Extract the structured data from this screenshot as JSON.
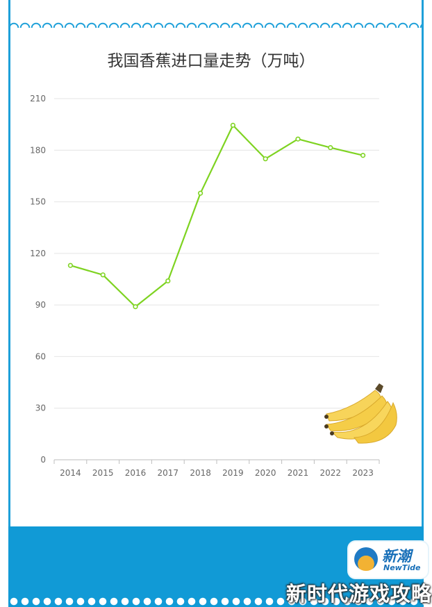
{
  "chart_data": {
    "type": "line",
    "title": "我国香蕉进口量走势（万吨）",
    "x": [
      "2014",
      "2015",
      "2016",
      "2017",
      "2018",
      "2019",
      "2020",
      "2021",
      "2022",
      "2023"
    ],
    "series": [
      {
        "values": [
          113,
          107.5,
          89,
          104,
          155,
          194.5,
          175,
          186.5,
          181.5,
          177
        ]
      }
    ],
    "yticks": [
      0,
      30,
      60,
      90,
      120,
      150,
      180,
      210
    ],
    "ylim": [
      0,
      210
    ],
    "grid": true,
    "line_color": "#7ed321"
  },
  "branding": {
    "logo_cn": "新潮",
    "logo_en": "NewTide",
    "watermark": "新时代游戏攻略"
  },
  "colors": {
    "frame": "#1ea0d9",
    "band": "#119ad6"
  }
}
